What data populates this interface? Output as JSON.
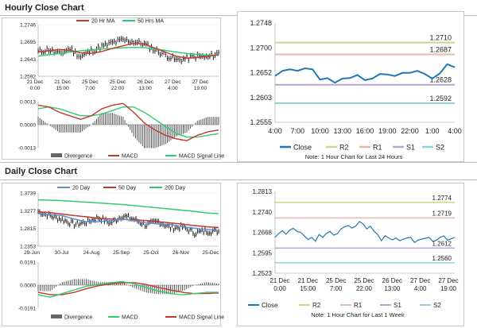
{
  "hourly": {
    "title": "Hourly Close Chart",
    "price": {
      "legend": [
        {
          "label": "20 Hr MA",
          "color": "#c0392b"
        },
        {
          "label": "50 Hrs MA",
          "color": "#2ecc71"
        }
      ],
      "y_ticks": [
        "1.2746",
        "1.2695",
        "1.2643",
        "1.2592"
      ],
      "x_ticks": [
        [
          "21 Dec",
          "0:00"
        ],
        [
          "21 Dec",
          "15:00"
        ],
        [
          "25 Dec",
          "7:00"
        ],
        [
          "25 Dec",
          "22:00"
        ],
        [
          "26 Dec",
          "13:00"
        ],
        [
          "27 Dec",
          "4:00"
        ],
        [
          "27 Dec",
          "19:00"
        ]
      ]
    },
    "macd": {
      "y_ticks": [
        "0.0013",
        "0.0000",
        "-0.0013"
      ],
      "legend": [
        {
          "label": "Divergence",
          "color": "#666666"
        },
        {
          "label": "MACD",
          "color": "#c0392b"
        },
        {
          "label": "MACD Signal Line",
          "color": "#2ecc71"
        }
      ]
    },
    "last24": {
      "y_ticks": [
        "1.2748",
        "1.2700",
        "1.2652",
        "1.2603",
        "1.2555"
      ],
      "x_ticks": [
        "4:00",
        "7:00",
        "10:00",
        "13:00",
        "16:00",
        "19:00",
        "22:00",
        "1:00",
        "4:00"
      ],
      "levels": [
        {
          "label": "1.2710",
          "value": 1.271,
          "color": "#c4d98a"
        },
        {
          "label": "1.2687",
          "value": 1.2687,
          "color": "#e8b7b0"
        },
        {
          "label": "1.2628",
          "value": 1.2628,
          "color": "#b9a6cf"
        },
        {
          "label": "1.2592",
          "value": 1.2592,
          "color": "#8fd3df"
        }
      ],
      "legend": [
        {
          "label": "Close",
          "color": "#2077b4"
        },
        {
          "label": "R2",
          "color": "#c4d98a"
        },
        {
          "label": "R1",
          "color": "#e8b7b0"
        },
        {
          "label": "S1",
          "color": "#b9a6cf"
        },
        {
          "label": "S2",
          "color": "#8fd3df"
        }
      ],
      "note": "Note: 1 Hour Chart for Last 24 Hours"
    }
  },
  "daily": {
    "title": "Daily Close Chart",
    "price": {
      "legend": [
        {
          "label": "20 Day",
          "color": "#5b8fd0"
        },
        {
          "label": "50 Day",
          "color": "#c0392b"
        },
        {
          "label": "200 Day",
          "color": "#2ecc71"
        }
      ],
      "y_ticks": [
        "1.3739",
        "1.3277",
        "1.2815",
        "1.2353"
      ],
      "x_ticks": [
        "29-Jun",
        "30-Jul",
        "24-Aug",
        "25-Sep",
        "25-Oct",
        "26-Nov",
        "25-Dec"
      ]
    },
    "macd": {
      "y_ticks": [
        "0.0191",
        "0.0000",
        "-0.0191"
      ],
      "legend": [
        {
          "label": "Divergence",
          "color": "#666666"
        },
        {
          "label": "MACD",
          "color": "#2ecc71"
        },
        {
          "label": "MACD Signal Line",
          "color": "#c0392b"
        }
      ]
    },
    "week": {
      "y_ticks": [
        "1.2813",
        "1.2740",
        "1.2668",
        "1.2595",
        "1.2523"
      ],
      "x_ticks": [
        [
          "21 Dec",
          "0:00"
        ],
        [
          "21 Dec",
          "15:00"
        ],
        [
          "25 Dec",
          "7:00"
        ],
        [
          "25 Dec",
          "22:00"
        ],
        [
          "26 Dec",
          "13:00"
        ],
        [
          "27 Dec",
          "4:00"
        ],
        [
          "27 Dec",
          "19:00"
        ]
      ],
      "levels": [
        {
          "label": "1.2774",
          "value": 1.2774,
          "color": "#c4d98a"
        },
        {
          "label": "1.2719",
          "value": 1.2719,
          "color": "#e8b7b0"
        },
        {
          "label": "1.2612",
          "value": 1.2612,
          "color": "#b9a6cf"
        },
        {
          "label": "1.2560",
          "value": 1.256,
          "color": "#8fd3df"
        }
      ],
      "legend": [
        {
          "label": "Close",
          "color": "#2077b4"
        },
        {
          "label": "R2",
          "color": "#c4d98a"
        },
        {
          "label": "R1",
          "color": "#e8b7b0"
        },
        {
          "label": "S1",
          "color": "#b9a6cf"
        },
        {
          "label": "S2",
          "color": "#8fd3df"
        }
      ],
      "note": "Note: 1 Hour Chart for Last 1 Week"
    }
  },
  "chart_data": [
    {
      "type": "line",
      "series": [
        {
          "name": "20 Hr MA",
          "values": [
            1.2664,
            1.2668,
            1.2672,
            1.2669,
            1.2662,
            1.266,
            1.2666,
            1.2675,
            1.2683,
            1.269,
            1.2688,
            1.2676,
            1.2664,
            1.2652,
            1.2646,
            1.2648,
            1.2652,
            1.2656
          ]
        },
        {
          "name": "50 Hrs MA",
          "values": [
            1.2652,
            1.2656,
            1.266,
            1.2664,
            1.2668,
            1.2671,
            1.2673,
            1.2675,
            1.2677,
            1.2678,
            1.2677,
            1.2674,
            1.2669,
            1.2664,
            1.266,
            1.2657,
            1.2655,
            1.2654
          ]
        },
        {
          "values": [
            1.2665,
            1.2672,
            1.2658,
            1.2675,
            1.265,
            1.2668,
            1.268,
            1.2692,
            1.27,
            1.2695,
            1.2688,
            1.267,
            1.2656,
            1.264,
            1.2645,
            1.2652,
            1.2648,
            1.2662
          ]
        }
      ],
      "ylim": [
        1.2592,
        1.2746
      ]
    },
    {
      "type": "bar",
      "series": [
        {
          "name": "MACD",
          "values": [
            0.0011,
            0.001,
            0.0007,
            0.0005,
            0.0003,
            0.0005,
            0.0009,
            0.0011,
            0.0012,
            0.0007,
            0.0001,
            -0.0003,
            -0.0006,
            -0.0008,
            -0.0009,
            -0.0006,
            -0.0004,
            -0.0003
          ]
        },
        {
          "name": "MACD Signal Line",
          "values": [
            0.0009,
            0.001,
            0.0009,
            0.0007,
            0.0005,
            0.0005,
            0.0006,
            0.0008,
            0.001,
            0.001,
            0.0007,
            0.0003,
            -0.0001,
            -0.0005,
            -0.0007,
            -0.0007,
            -0.0006,
            -0.0005
          ]
        }
      ],
      "ylim": [
        -0.0013,
        0.0013
      ]
    },
    {
      "type": "line",
      "x": [
        "4:00",
        "5:00",
        "6:00",
        "7:00",
        "8:00",
        "9:00",
        "10:00",
        "11:00",
        "12:00",
        "13:00",
        "14:00",
        "15:00",
        "16:00",
        "17:00",
        "18:00",
        "19:00",
        "20:00",
        "21:00",
        "22:00",
        "23:00",
        "0:00",
        "1:00",
        "2:00",
        "3:00",
        "4:00"
      ],
      "series": [
        {
          "name": "Close",
          "values": [
            1.2645,
            1.2655,
            1.2658,
            1.2655,
            1.266,
            1.2658,
            1.2638,
            1.2641,
            1.2632,
            1.264,
            1.2641,
            1.2647,
            1.2637,
            1.264,
            1.2649,
            1.2648,
            1.2645,
            1.2651,
            1.2651,
            1.2655,
            1.2649,
            1.264,
            1.265,
            1.2668,
            1.2662
          ]
        }
      ],
      "ylim": [
        1.2555,
        1.2748
      ]
    },
    {
      "type": "line",
      "series": [
        {
          "name": "20 Day",
          "values": [
            1.32,
            1.318,
            1.315,
            1.306,
            1.299,
            1.299,
            1.302,
            1.306,
            1.302,
            1.296,
            1.293,
            1.292,
            1.286,
            1.282,
            1.279,
            1.276
          ]
        },
        {
          "name": "50 Day",
          "values": [
            1.325,
            1.323,
            1.319,
            1.315,
            1.312,
            1.308,
            1.306,
            1.305,
            1.304,
            1.302,
            1.299,
            1.296,
            1.293,
            1.289,
            1.286,
            1.284
          ]
        },
        {
          "name": "200 Day",
          "values": [
            1.356,
            1.355,
            1.354,
            1.352,
            1.35,
            1.348,
            1.346,
            1.344,
            1.341,
            1.338,
            1.335,
            1.332,
            1.329,
            1.326,
            1.322,
            1.32
          ]
        },
        {
          "values": [
            1.326,
            1.314,
            1.305,
            1.292,
            1.298,
            1.31,
            1.295,
            1.315,
            1.305,
            1.29,
            1.3,
            1.283,
            1.285,
            1.27,
            1.275,
            1.274
          ]
        }
      ],
      "ylim": [
        1.2353,
        1.3739
      ]
    },
    {
      "type": "bar",
      "series": [
        {
          "name": "MACD",
          "values": [
            -0.008,
            -0.01,
            -0.007,
            -0.004,
            -0.001,
            0.0005,
            0.002,
            0.003,
            0.001,
            -0.002,
            -0.005,
            -0.007,
            -0.008,
            -0.007,
            -0.006,
            -0.006
          ]
        },
        {
          "name": "MACD Signal Line",
          "values": [
            -0.006,
            -0.008,
            -0.008,
            -0.006,
            -0.003,
            -0.0005,
            0.001,
            0.002,
            0.002,
            0.0005,
            -0.002,
            -0.004,
            -0.006,
            -0.007,
            -0.007,
            -0.0065
          ]
        }
      ],
      "ylim": [
        -0.0191,
        0.0191
      ]
    },
    {
      "type": "line",
      "series": [
        {
          "name": "Close",
          "values": [
            1.265,
            1.2664,
            1.2674,
            1.2661,
            1.2676,
            1.2682,
            1.2671,
            1.2668,
            1.2655,
            1.2642,
            1.265,
            1.2636,
            1.266,
            1.265,
            1.2664,
            1.2671,
            1.2658,
            1.2663,
            1.268,
            1.2688,
            1.2692,
            1.2683,
            1.269,
            1.2706,
            1.2698,
            1.268,
            1.269,
            1.2672,
            1.266,
            1.2638,
            1.2656,
            1.2648,
            1.2641,
            1.2648,
            1.2638,
            1.2644,
            1.2648,
            1.265,
            1.2632,
            1.264,
            1.2644,
            1.2647,
            1.265,
            1.2636,
            1.264,
            1.265,
            1.2655,
            1.264,
            1.2645,
            1.265
          ]
        }
      ],
      "ylim": [
        1.2523,
        1.2813
      ]
    }
  ]
}
